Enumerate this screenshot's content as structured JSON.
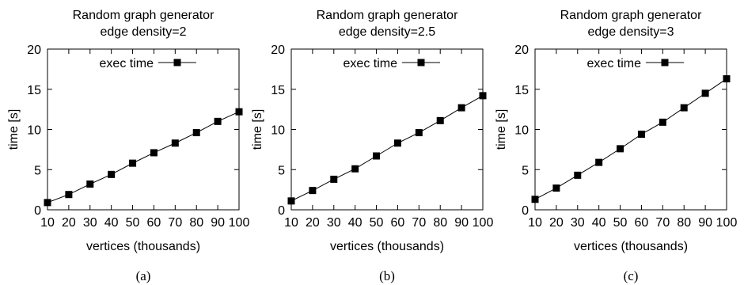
{
  "chart_data": [
    {
      "type": "line",
      "title": "Random graph generator",
      "subtitle": "edge density=2",
      "xlabel": "vertices (thousands)",
      "ylabel": "time [s]",
      "x": [
        10,
        20,
        30,
        40,
        50,
        60,
        70,
        80,
        90,
        100
      ],
      "xticks": [
        10,
        20,
        30,
        40,
        50,
        60,
        70,
        80,
        90,
        100
      ],
      "xlim": [
        10,
        100
      ],
      "ylim": [
        0,
        20
      ],
      "yticks": [
        0,
        5,
        10,
        15,
        20
      ],
      "series": [
        {
          "name": "exec time",
          "values": [
            0.9,
            1.9,
            3.2,
            4.4,
            5.8,
            7.1,
            8.3,
            9.6,
            11.0,
            12.2
          ]
        }
      ],
      "legend": "top-left",
      "grid": false,
      "caption": "(a)"
    },
    {
      "type": "line",
      "title": "Random graph generator",
      "subtitle": "edge density=2.5",
      "xlabel": "vertices (thousands)",
      "ylabel": "time [s]",
      "x": [
        10,
        20,
        30,
        40,
        50,
        60,
        70,
        80,
        90,
        100
      ],
      "xticks": [
        10,
        20,
        30,
        40,
        50,
        60,
        70,
        80,
        90,
        100
      ],
      "xlim": [
        10,
        100
      ],
      "ylim": [
        0,
        20
      ],
      "yticks": [
        0,
        5,
        10,
        15,
        20
      ],
      "series": [
        {
          "name": "exec time",
          "values": [
            1.1,
            2.4,
            3.8,
            5.1,
            6.7,
            8.3,
            9.6,
            11.1,
            12.7,
            14.2
          ]
        }
      ],
      "legend": "top-left",
      "grid": false,
      "caption": "(b)"
    },
    {
      "type": "line",
      "title": "Random graph generator",
      "subtitle": "edge density=3",
      "xlabel": "vertices (thousands)",
      "ylabel": "time [s]",
      "x": [
        10,
        20,
        30,
        40,
        50,
        60,
        70,
        80,
        90,
        100
      ],
      "xticks": [
        10,
        20,
        30,
        40,
        50,
        60,
        70,
        80,
        90,
        100
      ],
      "xlim": [
        10,
        100
      ],
      "ylim": [
        0,
        20
      ],
      "yticks": [
        0,
        5,
        10,
        15,
        20
      ],
      "series": [
        {
          "name": "exec time",
          "values": [
            1.3,
            2.7,
            4.3,
            5.9,
            7.6,
            9.4,
            10.9,
            12.7,
            14.5,
            16.3
          ]
        }
      ],
      "legend": "top-left",
      "grid": false,
      "caption": "(c)"
    }
  ]
}
